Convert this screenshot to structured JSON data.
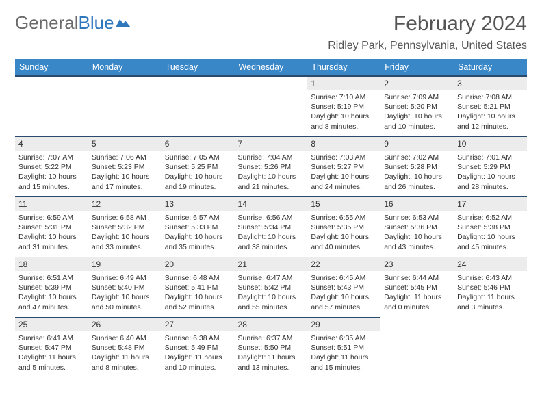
{
  "logo": {
    "text1": "General",
    "text2": "Blue"
  },
  "title": "February 2024",
  "location": "Ridley Park, Pennsylvania, United States",
  "colors": {
    "header_bg": "#3a87c8",
    "header_border": "#2c4a6b",
    "daynum_bg": "#ececec",
    "text": "#333333",
    "title": "#555555",
    "logo_gray": "#6b6b6b",
    "logo_blue": "#2f78bd"
  },
  "daysOfWeek": [
    "Sunday",
    "Monday",
    "Tuesday",
    "Wednesday",
    "Thursday",
    "Friday",
    "Saturday"
  ],
  "weeks": [
    [
      null,
      null,
      null,
      null,
      {
        "n": "1",
        "sr": "7:10 AM",
        "ss": "5:19 PM",
        "dl": "10 hours and 8 minutes."
      },
      {
        "n": "2",
        "sr": "7:09 AM",
        "ss": "5:20 PM",
        "dl": "10 hours and 10 minutes."
      },
      {
        "n": "3",
        "sr": "7:08 AM",
        "ss": "5:21 PM",
        "dl": "10 hours and 12 minutes."
      }
    ],
    [
      {
        "n": "4",
        "sr": "7:07 AM",
        "ss": "5:22 PM",
        "dl": "10 hours and 15 minutes."
      },
      {
        "n": "5",
        "sr": "7:06 AM",
        "ss": "5:23 PM",
        "dl": "10 hours and 17 minutes."
      },
      {
        "n": "6",
        "sr": "7:05 AM",
        "ss": "5:25 PM",
        "dl": "10 hours and 19 minutes."
      },
      {
        "n": "7",
        "sr": "7:04 AM",
        "ss": "5:26 PM",
        "dl": "10 hours and 21 minutes."
      },
      {
        "n": "8",
        "sr": "7:03 AM",
        "ss": "5:27 PM",
        "dl": "10 hours and 24 minutes."
      },
      {
        "n": "9",
        "sr": "7:02 AM",
        "ss": "5:28 PM",
        "dl": "10 hours and 26 minutes."
      },
      {
        "n": "10",
        "sr": "7:01 AM",
        "ss": "5:29 PM",
        "dl": "10 hours and 28 minutes."
      }
    ],
    [
      {
        "n": "11",
        "sr": "6:59 AM",
        "ss": "5:31 PM",
        "dl": "10 hours and 31 minutes."
      },
      {
        "n": "12",
        "sr": "6:58 AM",
        "ss": "5:32 PM",
        "dl": "10 hours and 33 minutes."
      },
      {
        "n": "13",
        "sr": "6:57 AM",
        "ss": "5:33 PM",
        "dl": "10 hours and 35 minutes."
      },
      {
        "n": "14",
        "sr": "6:56 AM",
        "ss": "5:34 PM",
        "dl": "10 hours and 38 minutes."
      },
      {
        "n": "15",
        "sr": "6:55 AM",
        "ss": "5:35 PM",
        "dl": "10 hours and 40 minutes."
      },
      {
        "n": "16",
        "sr": "6:53 AM",
        "ss": "5:36 PM",
        "dl": "10 hours and 43 minutes."
      },
      {
        "n": "17",
        "sr": "6:52 AM",
        "ss": "5:38 PM",
        "dl": "10 hours and 45 minutes."
      }
    ],
    [
      {
        "n": "18",
        "sr": "6:51 AM",
        "ss": "5:39 PM",
        "dl": "10 hours and 47 minutes."
      },
      {
        "n": "19",
        "sr": "6:49 AM",
        "ss": "5:40 PM",
        "dl": "10 hours and 50 minutes."
      },
      {
        "n": "20",
        "sr": "6:48 AM",
        "ss": "5:41 PM",
        "dl": "10 hours and 52 minutes."
      },
      {
        "n": "21",
        "sr": "6:47 AM",
        "ss": "5:42 PM",
        "dl": "10 hours and 55 minutes."
      },
      {
        "n": "22",
        "sr": "6:45 AM",
        "ss": "5:43 PM",
        "dl": "10 hours and 57 minutes."
      },
      {
        "n": "23",
        "sr": "6:44 AM",
        "ss": "5:45 PM",
        "dl": "11 hours and 0 minutes."
      },
      {
        "n": "24",
        "sr": "6:43 AM",
        "ss": "5:46 PM",
        "dl": "11 hours and 3 minutes."
      }
    ],
    [
      {
        "n": "25",
        "sr": "6:41 AM",
        "ss": "5:47 PM",
        "dl": "11 hours and 5 minutes."
      },
      {
        "n": "26",
        "sr": "6:40 AM",
        "ss": "5:48 PM",
        "dl": "11 hours and 8 minutes."
      },
      {
        "n": "27",
        "sr": "6:38 AM",
        "ss": "5:49 PM",
        "dl": "11 hours and 10 minutes."
      },
      {
        "n": "28",
        "sr": "6:37 AM",
        "ss": "5:50 PM",
        "dl": "11 hours and 13 minutes."
      },
      {
        "n": "29",
        "sr": "6:35 AM",
        "ss": "5:51 PM",
        "dl": "11 hours and 15 minutes."
      },
      null,
      null
    ]
  ],
  "labels": {
    "sunrise": "Sunrise:",
    "sunset": "Sunset:",
    "daylight": "Daylight:"
  }
}
